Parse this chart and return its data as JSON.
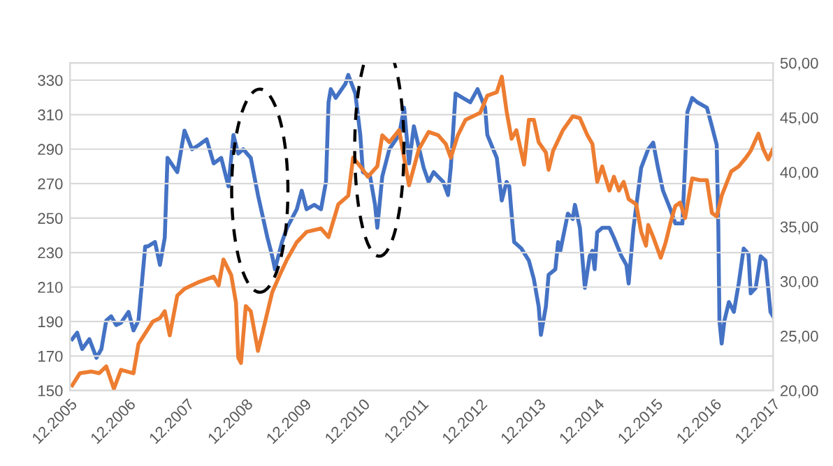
{
  "chart_data": {
    "type": "line",
    "series": [
      {
        "color": "#ed7d31",
        "axis": "y",
        "x": [
          "2005-12-15",
          "2006-02-01",
          "2006-04-15",
          "2006-06-01",
          "2006-07-15",
          "2006-09-01",
          "2006-10-15",
          "2007-01-01",
          "2007-02-01",
          "2007-05-01",
          "2007-06-15",
          "2007-07-15",
          "2007-08-15",
          "2007-10-01",
          "2007-11-15",
          "2008-02-15",
          "2008-05-15",
          "2008-06-15",
          "2008-07-15",
          "2008-09-01",
          "2008-10-01",
          "2008-10-15",
          "2008-11-01",
          "2008-12-01",
          "2009-01-01",
          "2009-02-15",
          "2009-04-01",
          "2009-05-15",
          "2009-07-01",
          "2009-08-15",
          "2009-10-15",
          "2009-12-15",
          "2010-03-15",
          "2010-05-01",
          "2010-07-01",
          "2010-09-01",
          "2010-10-01",
          "2010-11-15",
          "2011-01-01",
          "2011-03-01",
          "2011-04-01",
          "2011-05-15",
          "2011-07-15",
          "2011-09-15",
          "2011-11-15",
          "2012-01-15",
          "2012-03-15",
          "2012-05-01",
          "2012-06-01",
          "2012-07-15",
          "2012-09-01",
          "2012-12-01",
          "2013-01-15",
          "2013-03-15",
          "2013-04-15",
          "2013-05-15",
          "2013-06-15",
          "2013-07-15",
          "2013-09-01",
          "2013-10-01",
          "2013-11-01",
          "2013-12-01",
          "2014-01-15",
          "2014-02-01",
          "2014-03-01",
          "2014-05-01",
          "2014-07-01",
          "2014-08-15",
          "2014-10-01",
          "2014-11-01",
          "2014-12-01",
          "2015-01-01",
          "2015-02-15",
          "2015-03-15",
          "2015-04-15",
          "2015-05-15",
          "2015-06-15",
          "2015-08-01",
          "2015-09-01",
          "2015-10-01",
          "2015-10-15",
          "2015-11-15",
          "2016-01-01",
          "2016-02-01",
          "2016-03-01",
          "2016-04-01",
          "2016-05-01",
          "2016-06-01",
          "2016-07-01",
          "2016-07-15",
          "2016-09-01",
          "2016-10-15",
          "2016-11-15",
          "2016-12-15",
          "2017-01-15",
          "2017-03-15",
          "2017-05-01",
          "2017-06-15",
          "2017-07-15",
          "2017-09-01",
          "2017-10-01",
          "2017-11-01",
          "2017-12-01"
        ],
        "values": [
          153,
          160,
          161,
          160,
          164,
          151,
          162,
          160,
          177,
          190,
          192,
          196,
          182,
          205,
          209,
          213,
          216,
          211,
          226,
          217,
          201,
          169,
          166,
          199,
          196,
          173,
          190,
          207,
          217,
          226,
          236,
          242,
          244,
          239,
          258,
          263,
          285,
          280,
          274,
          280,
          298,
          294,
          301,
          269,
          290,
          300,
          298,
          293,
          285,
          298,
          307,
          311,
          321,
          323,
          332,
          312,
          296,
          301,
          281,
          307,
          307,
          294,
          288,
          278,
          289,
          301,
          309,
          308,
          298,
          293,
          271,
          280,
          266,
          274,
          266,
          271,
          261,
          258,
          242,
          234,
          246,
          239,
          227,
          236,
          247,
          257,
          259,
          250,
          266,
          273,
          272,
          272,
          253,
          251,
          263,
          277,
          280,
          285,
          289,
          299,
          290,
          284,
          290
        ]
      },
      {
        "color": "#4472c4",
        "axis": "y2",
        "x": [
          "2005-12-15",
          "2006-01-15",
          "2006-02-15",
          "2006-04-01",
          "2006-05-15",
          "2006-06-15",
          "2006-07-15",
          "2006-08-15",
          "2006-09-15",
          "2006-10-15",
          "2006-12-01",
          "2007-01-01",
          "2007-02-01",
          "2007-03-15",
          "2007-04-01",
          "2007-05-15",
          "2007-06-15",
          "2007-07-15",
          "2007-08-01",
          "2007-10-01",
          "2007-11-15",
          "2008-01-01",
          "2008-02-15",
          "2008-04-01",
          "2008-05-15",
          "2008-07-01",
          "2008-08-15",
          "2008-09-15",
          "2008-10-15",
          "2008-11-15",
          "2009-01-01",
          "2009-02-15",
          "2009-04-15",
          "2009-05-15",
          "2009-06-01",
          "2009-07-15",
          "2009-08-15",
          "2009-10-15",
          "2009-11-15",
          "2009-12-15",
          "2010-02-01",
          "2010-03-15",
          "2010-04-15",
          "2010-05-01",
          "2010-05-15",
          "2010-06-15",
          "2010-08-15",
          "2010-09-01",
          "2010-10-15",
          "2010-11-15",
          "2010-12-01",
          "2011-01-15",
          "2011-02-15",
          "2011-03-01",
          "2011-04-01",
          "2011-05-15",
          "2011-07-15",
          "2011-08-15",
          "2011-09-15",
          "2011-10-15",
          "2011-12-15",
          "2012-01-15",
          "2012-02-15",
          "2012-04-15",
          "2012-05-15",
          "2012-06-01",
          "2012-07-01",
          "2012-08-15",
          "2012-10-01",
          "2012-11-15",
          "2013-01-01",
          "2013-01-15",
          "2013-03-15",
          "2013-04-15",
          "2013-05-15",
          "2013-06-01",
          "2013-06-15",
          "2013-07-01",
          "2013-08-15",
          "2013-10-01",
          "2013-11-01",
          "2013-12-01",
          "2013-12-15",
          "2014-01-15",
          "2014-02-01",
          "2014-03-15",
          "2014-04-01",
          "2014-04-15",
          "2014-06-01",
          "2014-07-01",
          "2014-07-15",
          "2014-08-15",
          "2014-09-15",
          "2014-10-15",
          "2014-11-01",
          "2014-11-15",
          "2014-12-01",
          "2015-01-01",
          "2015-02-15",
          "2015-03-15",
          "2015-05-01",
          "2015-06-01",
          "2015-06-15",
          "2015-07-15",
          "2015-09-01",
          "2015-10-15",
          "2015-11-15",
          "2015-12-15",
          "2016-01-15",
          "2016-03-01",
          "2016-04-01",
          "2016-05-15",
          "2016-06-15",
          "2016-07-15",
          "2016-08-15",
          "2016-10-15",
          "2016-11-15",
          "2016-12-15",
          "2016-12-25",
          "2017-01-01",
          "2017-01-15",
          "2017-02-01",
          "2017-03-01",
          "2017-04-01",
          "2017-05-01",
          "2017-06-01",
          "2017-07-01",
          "2017-07-15",
          "2017-08-15",
          "2017-09-15",
          "2017-10-15",
          "2017-11-15",
          "2017-12-01"
        ],
        "values": [
          24.7,
          25.3,
          23.8,
          24.7,
          23.0,
          23.8,
          26.4,
          26.8,
          26.0,
          26.2,
          27.2,
          25.5,
          26.4,
          33.2,
          33.2,
          33.6,
          31.5,
          34.0,
          41.3,
          40.0,
          43.8,
          42.1,
          42.5,
          43.0,
          40.8,
          41.3,
          38.7,
          43.4,
          41.7,
          42.1,
          41.3,
          37.9,
          34.0,
          32.3,
          31.1,
          33.6,
          34.9,
          36.6,
          38.3,
          36.6,
          37.0,
          36.6,
          39.1,
          46.4,
          47.6,
          46.8,
          48.1,
          48.9,
          47.2,
          43.4,
          40.0,
          39.6,
          37.0,
          34.9,
          39.6,
          42.1,
          43.4,
          45.9,
          40.8,
          44.2,
          40.4,
          39.1,
          40.0,
          39.1,
          37.9,
          40.4,
          47.2,
          46.8,
          46.4,
          47.6,
          45.9,
          43.4,
          41.3,
          37.4,
          39.1,
          38.7,
          36.2,
          33.6,
          33.0,
          31.9,
          30.2,
          27.7,
          25.1,
          27.7,
          30.6,
          31.1,
          33.6,
          32.8,
          36.2,
          35.7,
          37.0,
          34.9,
          29.4,
          32.3,
          32.8,
          31.1,
          34.5,
          34.9,
          34.9,
          34.0,
          32.3,
          31.5,
          29.8,
          34.9,
          40.4,
          42.1,
          42.7,
          40.4,
          38.3,
          36.6,
          35.3,
          35.3,
          45.5,
          46.8,
          46.4,
          45.9,
          44.2,
          42.5,
          34.9,
          26.4,
          24.3,
          26.4,
          28.1,
          27.2,
          29.8,
          33.0,
          32.5,
          28.9,
          29.4,
          32.3,
          31.9,
          27.2,
          26.8
        ]
      }
    ],
    "xlim": [
      "2005-12-01",
      "2017-12-01"
    ],
    "xticks": [
      {
        "value": "2005-12-01",
        "label": "12.2005"
      },
      {
        "value": "2006-12-01",
        "label": "12.2006"
      },
      {
        "value": "2007-12-01",
        "label": "12.2007"
      },
      {
        "value": "2008-12-01",
        "label": "12.2008"
      },
      {
        "value": "2009-12-01",
        "label": "12.2009"
      },
      {
        "value": "2010-12-01",
        "label": "12.2010"
      },
      {
        "value": "2011-12-01",
        "label": "12.2011"
      },
      {
        "value": "2012-12-01",
        "label": "12.2012"
      },
      {
        "value": "2013-12-01",
        "label": "12.2013"
      },
      {
        "value": "2014-12-01",
        "label": "12.2014"
      },
      {
        "value": "2015-12-01",
        "label": "12.2015"
      },
      {
        "value": "2016-12-01",
        "label": "12.2016"
      },
      {
        "value": "2017-12-01",
        "label": "12.2017"
      }
    ],
    "ylim": [
      150,
      340
    ],
    "yticks": [
      150,
      170,
      190,
      210,
      230,
      250,
      270,
      290,
      310,
      330
    ],
    "y2lim": [
      20,
      50
    ],
    "y2ticks": [
      {
        "value": 20,
        "label": "20,00"
      },
      {
        "value": 25,
        "label": "25,00"
      },
      {
        "value": 30,
        "label": "30,00"
      },
      {
        "value": 35,
        "label": "35,00"
      },
      {
        "value": 40,
        "label": "40,00"
      },
      {
        "value": 45,
        "label": "45,00"
      },
      {
        "value": 50,
        "label": "50,00"
      }
    ],
    "grid": "y",
    "line_style": "solid"
  }
}
